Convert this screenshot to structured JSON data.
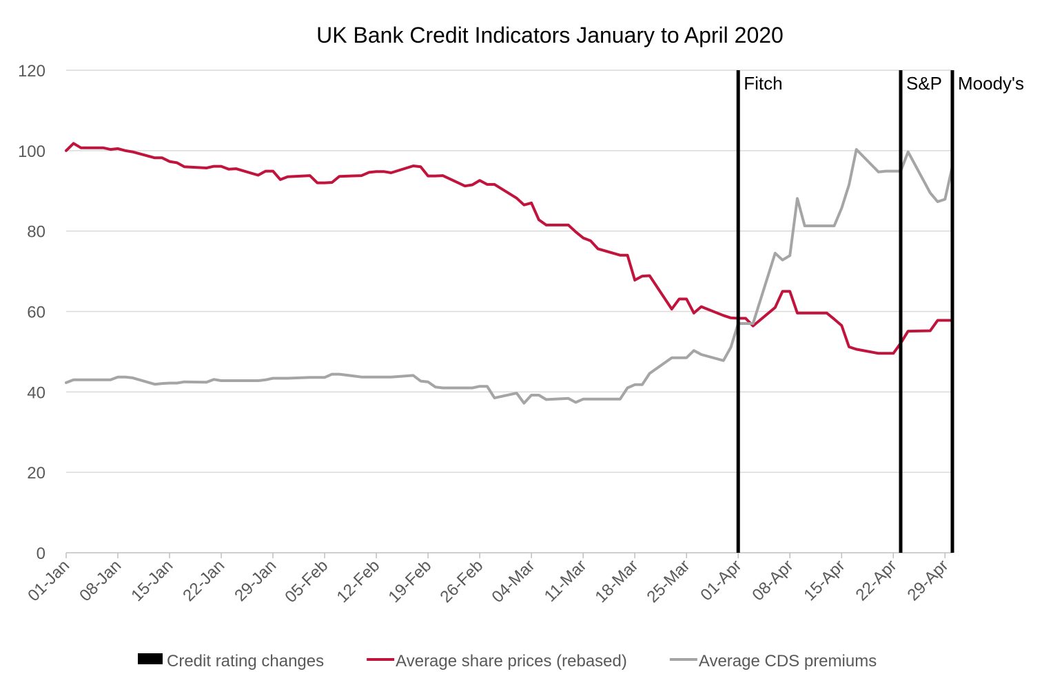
{
  "chart_data": {
    "type": "line",
    "title": "UK Bank Credit Indicators January to April 2020",
    "xlabel": "",
    "ylabel": "",
    "ylim": [
      0,
      120
    ],
    "yticks": [
      0,
      20,
      40,
      60,
      80,
      100,
      120
    ],
    "grid": "horizontal",
    "legend_position": "bottom",
    "x_start": "01-Jan",
    "x_end": "30-Apr",
    "x_tick_labels": [
      "01-Jan",
      "08-Jan",
      "15-Jan",
      "22-Jan",
      "29-Jan",
      "05-Feb",
      "12-Feb",
      "19-Feb",
      "26-Feb",
      "04-Mar",
      "11-Mar",
      "18-Mar",
      "25-Mar",
      "01-Apr",
      "08-Apr",
      "15-Apr",
      "22-Apr",
      "29-Apr"
    ],
    "events": [
      {
        "label": "Fitch",
        "date": "01-Apr"
      },
      {
        "label": "S&P",
        "date": "23-Apr"
      },
      {
        "label": "Moody's",
        "date": "30-Apr"
      }
    ],
    "series": [
      {
        "name": "Credit rating changes",
        "color": "#000000",
        "style": "bar"
      },
      {
        "name": "Average share prices (rebased)",
        "color": "#C0143C",
        "style": "line",
        "points": [
          [
            "01-Jan",
            100.0
          ],
          [
            "02-Jan",
            101.8
          ],
          [
            "03-Jan",
            100.7
          ],
          [
            "06-Jan",
            100.7
          ],
          [
            "07-Jan",
            100.3
          ],
          [
            "08-Jan",
            100.5
          ],
          [
            "09-Jan",
            100.0
          ],
          [
            "10-Jan",
            99.7
          ],
          [
            "13-Jan",
            98.2
          ],
          [
            "14-Jan",
            98.2
          ],
          [
            "15-Jan",
            97.3
          ],
          [
            "16-Jan",
            97.0
          ],
          [
            "17-Jan",
            96.0
          ],
          [
            "20-Jan",
            95.7
          ],
          [
            "21-Jan",
            96.1
          ],
          [
            "22-Jan",
            96.1
          ],
          [
            "23-Jan",
            95.4
          ],
          [
            "24-Jan",
            95.5
          ],
          [
            "27-Jan",
            93.9
          ],
          [
            "28-Jan",
            94.9
          ],
          [
            "29-Jan",
            94.9
          ],
          [
            "30-Jan",
            92.8
          ],
          [
            "31-Jan",
            93.5
          ],
          [
            "03-Feb",
            93.8
          ],
          [
            "04-Feb",
            92.0
          ],
          [
            "05-Feb",
            92.0
          ],
          [
            "06-Feb",
            92.1
          ],
          [
            "07-Feb",
            93.6
          ],
          [
            "10-Feb",
            93.8
          ],
          [
            "11-Feb",
            94.6
          ],
          [
            "12-Feb",
            94.8
          ],
          [
            "13-Feb",
            94.8
          ],
          [
            "14-Feb",
            94.5
          ],
          [
            "17-Feb",
            96.2
          ],
          [
            "18-Feb",
            96.0
          ],
          [
            "19-Feb",
            93.7
          ],
          [
            "20-Feb",
            93.7
          ],
          [
            "21-Feb",
            93.8
          ],
          [
            "24-Feb",
            91.2
          ],
          [
            "25-Feb",
            91.5
          ],
          [
            "26-Feb",
            92.6
          ],
          [
            "27-Feb",
            91.6
          ],
          [
            "28-Feb",
            91.6
          ],
          [
            "02-Mar",
            88.2
          ],
          [
            "03-Mar",
            86.5
          ],
          [
            "04-Mar",
            87.0
          ],
          [
            "05-Mar",
            82.8
          ],
          [
            "06-Mar",
            81.5
          ],
          [
            "09-Mar",
            81.5
          ],
          [
            "10-Mar",
            79.8
          ],
          [
            "11-Mar",
            78.3
          ],
          [
            "12-Mar",
            77.6
          ],
          [
            "13-Mar",
            75.6
          ],
          [
            "16-Mar",
            74.0
          ],
          [
            "17-Mar",
            74.0
          ],
          [
            "18-Mar",
            67.8
          ],
          [
            "19-Mar",
            68.8
          ],
          [
            "20-Mar",
            68.9
          ],
          [
            "23-Mar",
            60.6
          ],
          [
            "24-Mar",
            63.1
          ],
          [
            "25-Mar",
            63.1
          ],
          [
            "26-Mar",
            59.6
          ],
          [
            "27-Mar",
            61.2
          ],
          [
            "30-Mar",
            59.0
          ],
          [
            "31-Mar",
            58.4
          ],
          [
            "01-Apr",
            58.3
          ],
          [
            "02-Apr",
            58.3
          ],
          [
            "03-Apr",
            56.4
          ],
          [
            "06-Apr",
            61.0
          ],
          [
            "07-Apr",
            65.0
          ],
          [
            "08-Apr",
            65.0
          ],
          [
            "09-Apr",
            59.6
          ],
          [
            "10-Apr",
            59.6
          ],
          [
            "13-Apr",
            59.6
          ],
          [
            "14-Apr",
            58.1
          ],
          [
            "15-Apr",
            56.5
          ],
          [
            "16-Apr",
            51.2
          ],
          [
            "17-Apr",
            50.6
          ],
          [
            "20-Apr",
            49.6
          ],
          [
            "21-Apr",
            49.6
          ],
          [
            "22-Apr",
            49.6
          ],
          [
            "23-Apr",
            52.1
          ],
          [
            "24-Apr",
            55.1
          ],
          [
            "27-Apr",
            55.2
          ],
          [
            "28-Apr",
            57.8
          ],
          [
            "29-Apr",
            57.8
          ],
          [
            "30-Apr",
            57.8
          ]
        ]
      },
      {
        "name": "Average CDS premiums",
        "color": "#A5A5A5",
        "style": "line",
        "points": [
          [
            "01-Jan",
            42.3
          ],
          [
            "02-Jan",
            43.0
          ],
          [
            "03-Jan",
            43.0
          ],
          [
            "06-Jan",
            43.0
          ],
          [
            "07-Jan",
            43.0
          ],
          [
            "08-Jan",
            43.7
          ],
          [
            "09-Jan",
            43.7
          ],
          [
            "10-Jan",
            43.5
          ],
          [
            "13-Jan",
            41.9
          ],
          [
            "14-Jan",
            42.1
          ],
          [
            "15-Jan",
            42.2
          ],
          [
            "16-Jan",
            42.2
          ],
          [
            "17-Jan",
            42.5
          ],
          [
            "20-Jan",
            42.4
          ],
          [
            "21-Jan",
            43.1
          ],
          [
            "22-Jan",
            42.8
          ],
          [
            "23-Jan",
            42.8
          ],
          [
            "24-Jan",
            42.8
          ],
          [
            "27-Jan",
            42.8
          ],
          [
            "28-Jan",
            43.0
          ],
          [
            "29-Jan",
            43.4
          ],
          [
            "30-Jan",
            43.4
          ],
          [
            "31-Jan",
            43.4
          ],
          [
            "03-Feb",
            43.6
          ],
          [
            "04-Feb",
            43.6
          ],
          [
            "05-Feb",
            43.6
          ],
          [
            "06-Feb",
            44.4
          ],
          [
            "07-Feb",
            44.4
          ],
          [
            "10-Feb",
            43.7
          ],
          [
            "11-Feb",
            43.7
          ],
          [
            "12-Feb",
            43.7
          ],
          [
            "13-Feb",
            43.7
          ],
          [
            "14-Feb",
            43.7
          ],
          [
            "17-Feb",
            44.1
          ],
          [
            "18-Feb",
            42.7
          ],
          [
            "19-Feb",
            42.5
          ],
          [
            "20-Feb",
            41.2
          ],
          [
            "21-Feb",
            41.0
          ],
          [
            "24-Feb",
            41.0
          ],
          [
            "25-Feb",
            41.0
          ],
          [
            "26-Feb",
            41.4
          ],
          [
            "27-Feb",
            41.4
          ],
          [
            "28-Feb",
            38.5
          ],
          [
            "02-Mar",
            39.7
          ],
          [
            "03-Mar",
            37.2
          ],
          [
            "04-Mar",
            39.2
          ],
          [
            "05-Mar",
            39.2
          ],
          [
            "06-Mar",
            38.1
          ],
          [
            "09-Mar",
            38.4
          ],
          [
            "10-Mar",
            37.4
          ],
          [
            "11-Mar",
            38.2
          ],
          [
            "12-Mar",
            38.2
          ],
          [
            "13-Mar",
            38.2
          ],
          [
            "16-Mar",
            38.2
          ],
          [
            "17-Mar",
            41.0
          ],
          [
            "18-Mar",
            41.8
          ],
          [
            "19-Mar",
            41.8
          ],
          [
            "20-Mar",
            44.6
          ],
          [
            "23-Mar",
            48.5
          ],
          [
            "24-Mar",
            48.5
          ],
          [
            "25-Mar",
            48.5
          ],
          [
            "26-Mar",
            50.3
          ],
          [
            "27-Mar",
            49.3
          ],
          [
            "30-Mar",
            47.8
          ],
          [
            "31-Mar",
            51.1
          ],
          [
            "01-Apr",
            57.0
          ],
          [
            "02-Apr",
            57.0
          ],
          [
            "03-Apr",
            57.0
          ],
          [
            "06-Apr",
            74.5
          ],
          [
            "07-Apr",
            72.8
          ],
          [
            "08-Apr",
            73.9
          ],
          [
            "09-Apr",
            88.1
          ],
          [
            "10-Apr",
            81.3
          ],
          [
            "13-Apr",
            81.3
          ],
          [
            "14-Apr",
            81.3
          ],
          [
            "15-Apr",
            85.7
          ],
          [
            "16-Apr",
            91.5
          ],
          [
            "17-Apr",
            100.3
          ],
          [
            "20-Apr",
            94.7
          ],
          [
            "21-Apr",
            94.9
          ],
          [
            "22-Apr",
            94.9
          ],
          [
            "23-Apr",
            94.9
          ],
          [
            "24-Apr",
            99.7
          ],
          [
            "27-Apr",
            89.5
          ],
          [
            "28-Apr",
            87.3
          ],
          [
            "29-Apr",
            87.9
          ],
          [
            "30-Apr",
            96.1
          ]
        ]
      }
    ]
  },
  "legend": {
    "items": [
      {
        "label": "Credit rating changes",
        "color": "#000000",
        "swatch": "box"
      },
      {
        "label": "Average share prices (rebased)",
        "color": "#C0143C",
        "swatch": "line"
      },
      {
        "label": "Average CDS premiums",
        "color": "#A5A5A5",
        "swatch": "line"
      }
    ]
  }
}
